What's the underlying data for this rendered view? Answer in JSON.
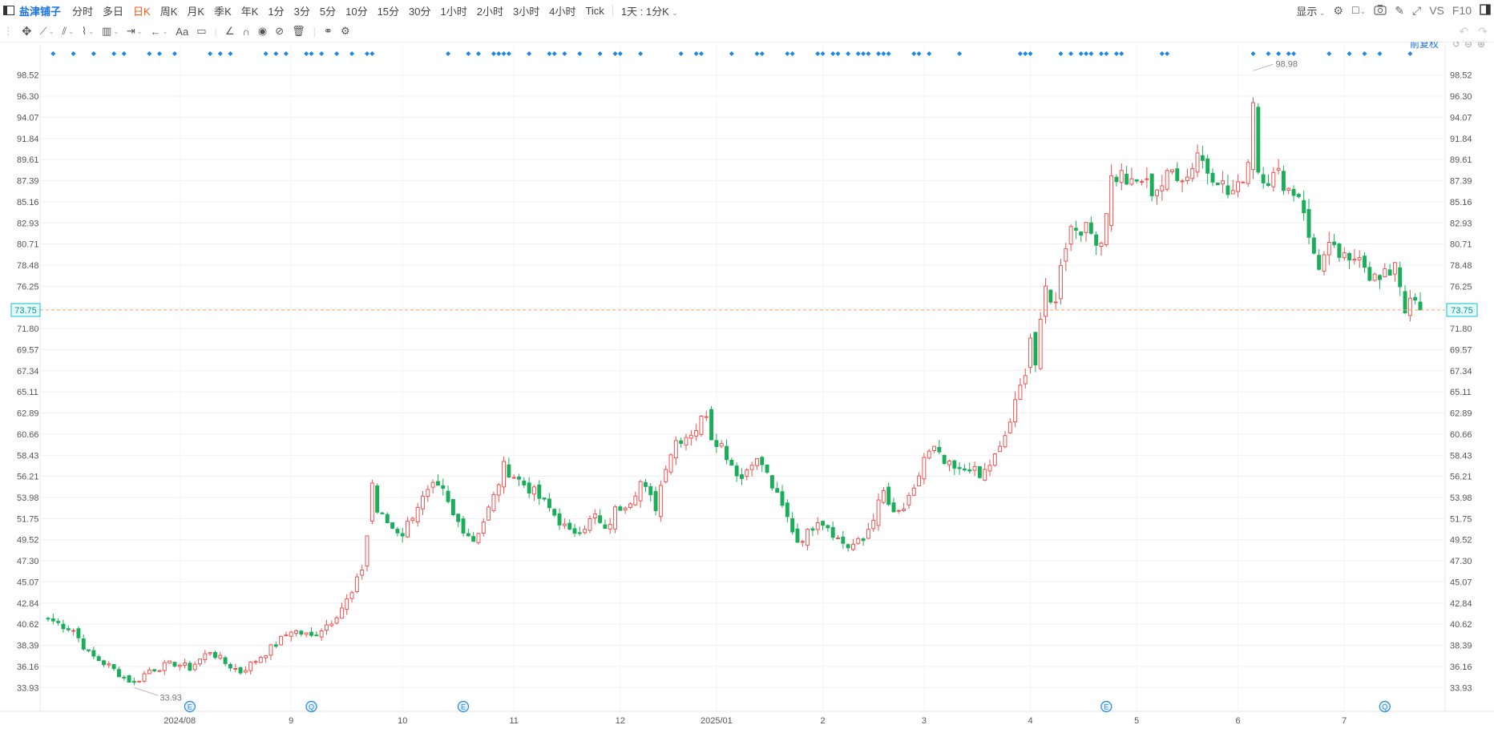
{
  "header": {
    "stock_name": "盐津铺子",
    "periods": [
      "分时",
      "多日",
      "日K",
      "周K",
      "月K",
      "季K",
      "年K",
      "1分",
      "3分",
      "5分",
      "10分",
      "15分",
      "30分",
      "1小时",
      "2小时",
      "3小时",
      "4小时",
      "Tick"
    ],
    "active_period": "日K",
    "range_label": "1天 : 1分K",
    "display_label": "显示",
    "vs_label": "VS",
    "f10_label": "F10"
  },
  "toolbar": {
    "text_tool_label": "Aa",
    "adjust_label": "前复权"
  },
  "colors": {
    "up": "#ef5350",
    "down": "#1aae5b",
    "last_price_line": "#f5a06a",
    "last_price_tag": "#13c2c2",
    "grid": "#f0f0f0",
    "marker": "#1e88e5"
  },
  "chart_data": {
    "type": "candlestick",
    "y_ticks": [
      "98.52",
      "96.30",
      "94.07",
      "91.84",
      "89.61",
      "87.39",
      "85.16",
      "82.93",
      "80.71",
      "78.48",
      "76.25",
      "73.98",
      "71.80",
      "69.57",
      "67.34",
      "65.11",
      "62.89",
      "60.66",
      "58.43",
      "56.21",
      "53.98",
      "51.75",
      "49.52",
      "47.30",
      "45.07",
      "42.84",
      "40.62",
      "38.39",
      "36.16",
      "33.93"
    ],
    "ylim": [
      32.6,
      101.2
    ],
    "x_labels": [
      "2024/08",
      "9",
      "10",
      "11",
      "12",
      "2025/01",
      "2",
      "3",
      "4",
      "5",
      "6",
      "7"
    ],
    "last_price": "73.75",
    "max_label": "98.98",
    "min_label": "33.93",
    "event_markers": [
      "E",
      "Q",
      "E",
      "E",
      "Q"
    ],
    "anchors": [
      [
        0,
        41.2
      ],
      [
        5,
        40.0
      ],
      [
        8,
        37.5
      ],
      [
        12,
        36.2
      ],
      [
        15,
        35.0
      ],
      [
        17,
        34.4
      ],
      [
        20,
        35.8
      ],
      [
        25,
        36.5
      ],
      [
        28,
        36.0
      ],
      [
        32,
        37.8
      ],
      [
        35,
        36.5
      ],
      [
        38,
        35.6
      ],
      [
        41,
        36.8
      ],
      [
        45,
        38.5
      ],
      [
        48,
        40.0
      ],
      [
        52,
        39.3
      ],
      [
        56,
        41.0
      ],
      [
        60,
        43.8
      ],
      [
        62,
        46.5
      ],
      [
        63,
        50.0
      ],
      [
        64,
        55.5
      ],
      [
        65,
        52.5
      ],
      [
        68,
        50.8
      ],
      [
        70,
        50.2
      ],
      [
        73,
        53.2
      ],
      [
        76,
        55.0
      ],
      [
        78,
        54.5
      ],
      [
        80,
        52.0
      ],
      [
        84,
        49.5
      ],
      [
        86,
        51.5
      ],
      [
        88,
        54.0
      ],
      [
        90,
        57.2
      ],
      [
        93,
        55.8
      ],
      [
        96,
        54.5
      ],
      [
        99,
        52.8
      ],
      [
        103,
        50.2
      ],
      [
        106,
        51.0
      ],
      [
        108,
        52.0
      ],
      [
        110,
        50.3
      ],
      [
        112,
        52.6
      ],
      [
        115,
        53.8
      ],
      [
        117,
        55.6
      ],
      [
        120,
        53.0
      ],
      [
        122,
        57.5
      ],
      [
        124,
        60.0
      ],
      [
        126,
        60.5
      ],
      [
        128,
        61.3
      ],
      [
        130,
        63.0
      ],
      [
        131,
        60.5
      ],
      [
        133,
        59.5
      ],
      [
        135,
        57.5
      ],
      [
        137,
        56.0
      ],
      [
        139,
        58.0
      ],
      [
        141,
        57.5
      ],
      [
        144,
        54.0
      ],
      [
        146,
        51.8
      ],
      [
        148,
        49.4
      ],
      [
        150,
        50.2
      ],
      [
        152,
        51.8
      ],
      [
        154,
        51.0
      ],
      [
        156,
        49.6
      ],
      [
        158,
        48.8
      ],
      [
        161,
        49.4
      ],
      [
        163,
        52.0
      ],
      [
        165,
        54.5
      ],
      [
        167,
        52.0
      ],
      [
        169,
        52.8
      ],
      [
        171,
        54.5
      ],
      [
        173,
        58.2
      ],
      [
        175,
        59.0
      ],
      [
        177,
        57.5
      ],
      [
        180,
        56.6
      ],
      [
        182,
        57.3
      ],
      [
        184,
        56.0
      ],
      [
        186,
        57.5
      ],
      [
        188,
        59.0
      ],
      [
        190,
        62.0
      ],
      [
        192,
        65.5
      ],
      [
        193,
        67.5
      ],
      [
        194,
        71.0
      ],
      [
        195,
        68.0
      ],
      [
        196,
        72.0
      ],
      [
        197,
        76.0
      ],
      [
        199,
        74.3
      ],
      [
        200,
        79.0
      ],
      [
        202,
        82.5
      ],
      [
        204,
        82.5
      ],
      [
        206,
        81.8
      ],
      [
        208,
        81.0
      ],
      [
        209,
        84.5
      ],
      [
        210,
        87.6
      ],
      [
        212,
        88.0
      ],
      [
        214,
        86.8
      ],
      [
        216,
        87.5
      ],
      [
        218,
        86.4
      ],
      [
        220,
        87.0
      ],
      [
        222,
        88.4
      ],
      [
        225,
        87.8
      ],
      [
        227,
        90.5
      ],
      [
        229,
        88.5
      ],
      [
        231,
        87.8
      ],
      [
        233,
        86.0
      ],
      [
        235,
        86.5
      ],
      [
        237,
        89.5
      ],
      [
        238,
        96.2
      ],
      [
        239,
        88.5
      ],
      [
        241,
        87.6
      ],
      [
        243,
        88.0
      ],
      [
        245,
        86.5
      ],
      [
        247,
        86.0
      ],
      [
        248,
        84.5
      ],
      [
        249,
        81.0
      ],
      [
        251,
        78.5
      ],
      [
        253,
        80.2
      ],
      [
        255,
        79.5
      ],
      [
        257,
        78.5
      ],
      [
        259,
        80.0
      ],
      [
        261,
        77.5
      ],
      [
        263,
        76.8
      ],
      [
        265,
        77.8
      ],
      [
        266,
        79.0
      ],
      [
        268,
        74.0
      ],
      [
        270,
        74.6
      ],
      [
        271,
        73.75
      ]
    ]
  }
}
